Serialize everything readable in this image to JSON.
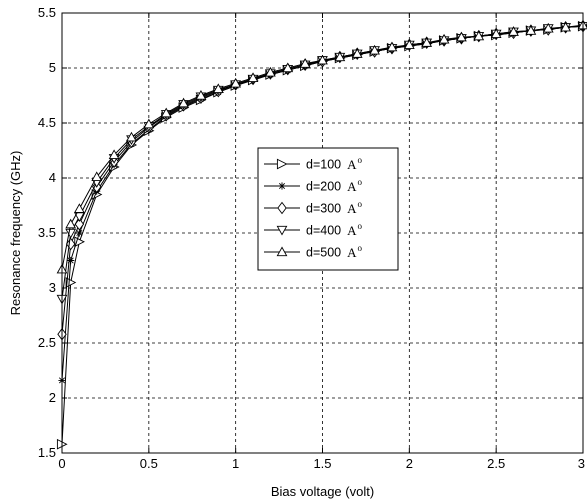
{
  "chart_data": {
    "type": "line",
    "title": "",
    "xlabel": "Bias voltage (volt)",
    "ylabel": "Resonance frequency (GHz)",
    "xlim": [
      0,
      3
    ],
    "ylim": [
      1.5,
      5.5
    ],
    "xticks": [
      0,
      0.5,
      1,
      1.5,
      2,
      2.5,
      3
    ],
    "xtick_labels": [
      "0",
      "0.5",
      "1",
      "1.5",
      "2",
      "2.5",
      "3"
    ],
    "yticks": [
      1.5,
      2,
      2.5,
      3,
      3.5,
      4,
      4.5,
      5,
      5.5
    ],
    "ytick_labels": [
      "1.5",
      "2",
      "2.5",
      "3",
      "3.5",
      "4",
      "4.5",
      "5",
      "5.5"
    ],
    "grid": true,
    "legend_position": "center",
    "x": [
      0,
      0.05,
      0.1,
      0.2,
      0.3,
      0.4,
      0.5,
      0.6,
      0.7,
      0.8,
      0.9,
      1.0,
      1.1,
      1.2,
      1.3,
      1.4,
      1.5,
      1.6,
      1.7,
      1.8,
      1.9,
      2.0,
      2.1,
      2.2,
      2.3,
      2.4,
      2.5,
      2.6,
      2.7,
      2.8,
      2.9,
      3.0
    ],
    "series": [
      {
        "name": "d=100",
        "unit": "A",
        "unit_sup": "o",
        "marker": "triangle-right",
        "values": [
          1.58,
          3.05,
          3.42,
          3.85,
          4.1,
          4.3,
          4.43,
          4.55,
          4.64,
          4.71,
          4.78,
          4.84,
          4.89,
          4.94,
          4.98,
          5.02,
          5.06,
          5.09,
          5.12,
          5.15,
          5.18,
          5.2,
          5.22,
          5.25,
          5.27,
          5.29,
          5.3,
          5.32,
          5.34,
          5.35,
          5.37,
          5.38
        ]
      },
      {
        "name": "d=200",
        "unit": "A",
        "unit_sup": "o",
        "marker": "star",
        "values": [
          2.16,
          3.25,
          3.5,
          3.88,
          4.12,
          4.31,
          4.44,
          4.56,
          4.65,
          4.72,
          4.78,
          4.84,
          4.9,
          4.94,
          4.98,
          5.02,
          5.06,
          5.09,
          5.12,
          5.15,
          5.18,
          5.2,
          5.22,
          5.25,
          5.27,
          5.29,
          5.3,
          5.32,
          5.34,
          5.35,
          5.37,
          5.38
        ]
      },
      {
        "name": "d=300",
        "unit": "A",
        "unit_sup": "o",
        "marker": "diamond",
        "values": [
          2.58,
          3.4,
          3.58,
          3.92,
          4.15,
          4.33,
          4.46,
          4.57,
          4.66,
          4.73,
          4.79,
          4.85,
          4.9,
          4.95,
          4.99,
          5.03,
          5.06,
          5.1,
          5.13,
          5.15,
          5.18,
          5.21,
          5.23,
          5.25,
          5.27,
          5.29,
          5.31,
          5.32,
          5.34,
          5.35,
          5.37,
          5.38
        ]
      },
      {
        "name": "d=400",
        "unit": "A",
        "unit_sup": "o",
        "marker": "triangle-down",
        "values": [
          2.9,
          3.5,
          3.65,
          3.96,
          4.18,
          4.35,
          4.47,
          4.58,
          4.67,
          4.74,
          4.8,
          4.85,
          4.9,
          4.95,
          4.99,
          5.03,
          5.07,
          5.1,
          5.13,
          5.16,
          5.18,
          5.21,
          5.23,
          5.25,
          5.27,
          5.29,
          5.31,
          5.33,
          5.34,
          5.36,
          5.37,
          5.38
        ]
      },
      {
        "name": "d=500",
        "unit": "A",
        "unit_sup": "o",
        "marker": "triangle-up",
        "values": [
          3.17,
          3.58,
          3.72,
          4.01,
          4.21,
          4.37,
          4.49,
          4.59,
          4.68,
          4.75,
          4.81,
          4.86,
          4.91,
          4.96,
          5.0,
          5.04,
          5.07,
          5.1,
          5.13,
          5.16,
          5.19,
          5.21,
          5.23,
          5.26,
          5.28,
          5.29,
          5.31,
          5.33,
          5.34,
          5.36,
          5.37,
          5.39
        ]
      }
    ]
  }
}
